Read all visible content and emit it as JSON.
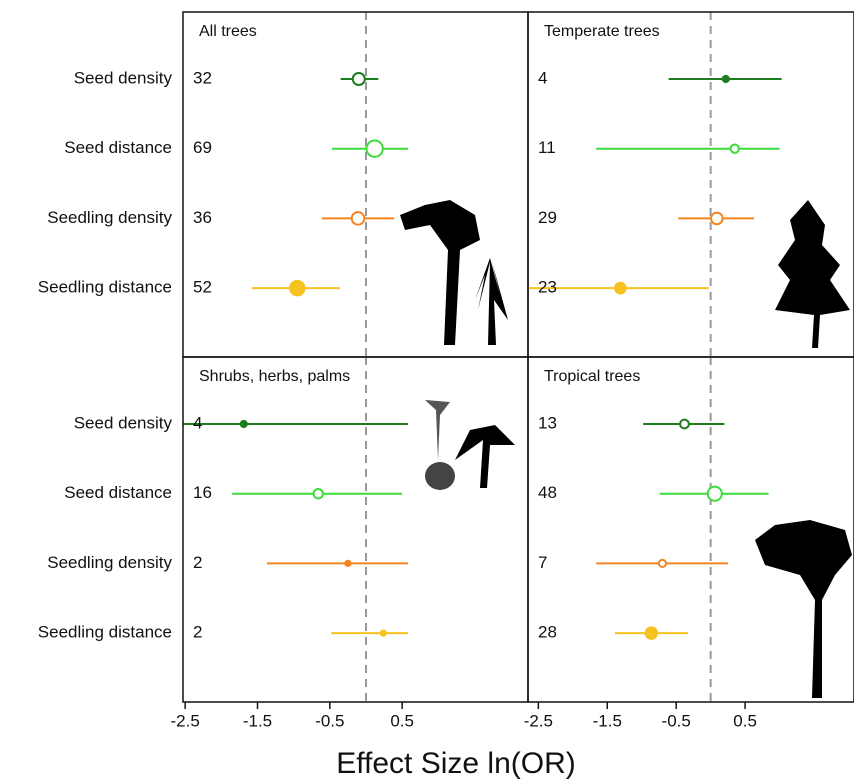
{
  "chart_data": [
    {
      "type": "forest",
      "title": "All trees",
      "categories": [
        "Seed density",
        "Seed distance",
        "Seedling density",
        "Seedling distance"
      ],
      "n": [
        32,
        69,
        36,
        52
      ],
      "values": [
        -0.1,
        0.12,
        -0.11,
        -0.95
      ],
      "lower": [
        -0.35,
        -0.47,
        -0.61,
        -1.58
      ],
      "upper": [
        0.17,
        0.58,
        0.39,
        -0.36
      ],
      "filled": [
        false,
        false,
        false,
        true
      ],
      "colors": [
        "#1e7d1e",
        "#3bdc3b",
        "#f28422",
        "#f6c21f"
      ],
      "xlim": [
        -2.53,
        2.24
      ]
    },
    {
      "type": "forest",
      "title": "Temperate trees",
      "n": [
        4,
        11,
        29,
        23
      ],
      "values": [
        0.22,
        0.35,
        0.09,
        -1.31
      ],
      "lower": [
        -0.61,
        -1.66,
        -0.47,
        -2.65
      ],
      "upper": [
        1.03,
        1.0,
        0.63,
        -0.03
      ],
      "filled": [
        true,
        false,
        false,
        true
      ],
      "colors": [
        "#1e7d1e",
        "#3bdc3b",
        "#f28422",
        "#f6c21f"
      ],
      "xlim": [
        -2.65,
        2.08
      ]
    },
    {
      "type": "forest",
      "title": "Shrubs, herbs, palms",
      "categories": [
        "Seed density",
        "Seed distance",
        "Seedling density",
        "Seedling distance"
      ],
      "n": [
        4,
        16,
        2,
        2
      ],
      "values": [
        -1.69,
        -0.66,
        -0.25,
        0.24
      ],
      "lower": [
        -2.53,
        -1.85,
        -1.37,
        -0.48
      ],
      "upper": [
        0.58,
        0.5,
        0.58,
        0.58
      ],
      "filled": [
        true,
        false,
        true,
        true
      ],
      "colors": [
        "#1e7d1e",
        "#3bdc3b",
        "#f28422",
        "#f6c21f"
      ],
      "xlim": [
        -2.53,
        2.24
      ],
      "xticks": [
        -2.5,
        -1.5,
        -0.5,
        0.5
      ],
      "xlabel": "Effect Size ln(OR)"
    },
    {
      "type": "forest",
      "title": "Tropical trees",
      "n": [
        13,
        48,
        7,
        28
      ],
      "values": [
        -0.38,
        0.06,
        -0.7,
        -0.86
      ],
      "lower": [
        -0.98,
        -0.74,
        -1.66,
        -1.39
      ],
      "upper": [
        0.2,
        0.84,
        0.25,
        -0.33
      ],
      "filled": [
        false,
        false,
        false,
        true
      ],
      "colors": [
        "#1e7d1e",
        "#3bdc3b",
        "#f28422",
        "#f6c21f"
      ],
      "xlim": [
        -2.65,
        2.08
      ],
      "xticks": [
        -2.5,
        -1.5,
        -0.5,
        0.5
      ]
    }
  ]
}
